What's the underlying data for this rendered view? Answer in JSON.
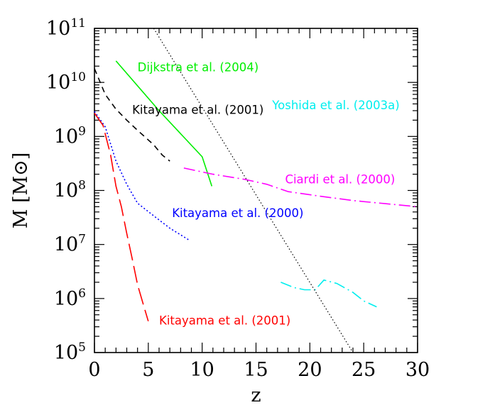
{
  "chart_data": {
    "type": "line",
    "xlabel": "z",
    "ylabel": "M [M⊙]",
    "y_scale": "log",
    "xlim": [
      0,
      30
    ],
    "ylim": [
      100000,
      100000000000
    ],
    "grid": false,
    "x_ticks": [
      {
        "value": 0,
        "label": "0"
      },
      {
        "value": 5,
        "label": "5"
      },
      {
        "value": 10,
        "label": "10"
      },
      {
        "value": 15,
        "label": "15"
      },
      {
        "value": 20,
        "label": "20"
      },
      {
        "value": 25,
        "label": "25"
      },
      {
        "value": 30,
        "label": "30"
      }
    ],
    "y_ticks": [
      {
        "value": 100000,
        "base": "10",
        "exp": "5"
      },
      {
        "value": 1000000,
        "base": "10",
        "exp": "6"
      },
      {
        "value": 10000000,
        "base": "10",
        "exp": "7"
      },
      {
        "value": 100000000,
        "base": "10",
        "exp": "8"
      },
      {
        "value": 1000000000,
        "base": "10",
        "exp": "9"
      },
      {
        "value": 10000000000,
        "base": "10",
        "exp": "10"
      },
      {
        "value": 100000000000,
        "base": "10",
        "exp": "11"
      }
    ],
    "series": [
      {
        "name": "Dijkstra et al. (2004)",
        "color": "#00ee00",
        "dash": "solid",
        "label_pos": {
          "x": 4.0,
          "y": 16000000000
        },
        "points": [
          [
            2.0,
            25000000000
          ],
          [
            6.0,
            3000000000
          ],
          [
            10.0,
            420000000
          ],
          [
            10.9,
            120000000
          ]
        ]
      },
      {
        "name": "Kitayama et al. (2001)",
        "color": "#000000",
        "dash": "short-dash",
        "label_pos": {
          "x": 3.5,
          "y": 2600000000
        },
        "points": [
          [
            0.0,
            18000000000
          ],
          [
            1.0,
            6000000000
          ],
          [
            2.0,
            3200000000
          ],
          [
            3.0,
            2000000000
          ],
          [
            4.0,
            1300000000
          ],
          [
            5.5,
            700000000
          ],
          [
            6.3,
            450000000
          ],
          [
            7.0,
            350000000
          ]
        ]
      },
      {
        "name": "Ciardi et al. (2000)",
        "color": "#ff00ff",
        "dash": "dash-dot",
        "label_pos": {
          "x": 17.7,
          "y": 135000000
        },
        "points": [
          [
            8.3,
            260000000
          ],
          [
            11.0,
            200000000
          ],
          [
            14.0,
            160000000
          ],
          [
            16.0,
            130000000
          ],
          [
            18.0,
            95000000
          ],
          [
            21.0,
            78000000
          ],
          [
            24.0,
            65000000
          ],
          [
            27.0,
            57000000
          ],
          [
            30.0,
            50000000
          ]
        ]
      },
      {
        "name": "Kitayama et al. (2000)",
        "color": "#0000ff",
        "dash": "dotted",
        "label_pos": {
          "x": 7.2,
          "y": 32000000
        },
        "points": [
          [
            0.0,
            2900000000
          ],
          [
            1.0,
            1500000000
          ],
          [
            2.0,
            350000000
          ],
          [
            3.0,
            130000000
          ],
          [
            4.0,
            58000000
          ],
          [
            5.5,
            34000000
          ],
          [
            7.0,
            20000000
          ],
          [
            8.8,
            12000000
          ]
        ]
      },
      {
        "name": "Yoshida et al. (2003a)",
        "color": "#00eeee",
        "dash": "dash-dot",
        "label_pos": {
          "x": 16.5,
          "y": 3200000000
        },
        "points": [
          [
            17.3,
            2000000
          ],
          [
            18.5,
            1600000
          ],
          [
            19.5,
            1450000
          ],
          [
            20.5,
            1450000
          ],
          [
            21.3,
            2200000
          ],
          [
            22.5,
            1900000
          ],
          [
            24.0,
            1300000
          ],
          [
            25.0,
            900000
          ],
          [
            26.2,
            700000
          ]
        ]
      },
      {
        "name": "Kitayama et al. (2001)",
        "color": "#ff0000",
        "dash": "long-dash",
        "label_pos": {
          "x": 6.0,
          "y": 330000
        },
        "points": [
          [
            0.0,
            2700000000
          ],
          [
            0.8,
            1600000000
          ],
          [
            1.5,
            450000000
          ],
          [
            2.0,
            120000000
          ],
          [
            2.5,
            50000000
          ],
          [
            3.0,
            16000000
          ],
          [
            3.5,
            5500000
          ],
          [
            4.0,
            1800000
          ],
          [
            4.6,
            700000
          ],
          [
            5.0,
            380000
          ]
        ]
      },
      {
        "name": "",
        "color": "#000000",
        "dash": "fine-dotted",
        "points": [
          [
            5.5,
            100000000000
          ],
          [
            24.0,
            100000
          ]
        ]
      }
    ]
  }
}
